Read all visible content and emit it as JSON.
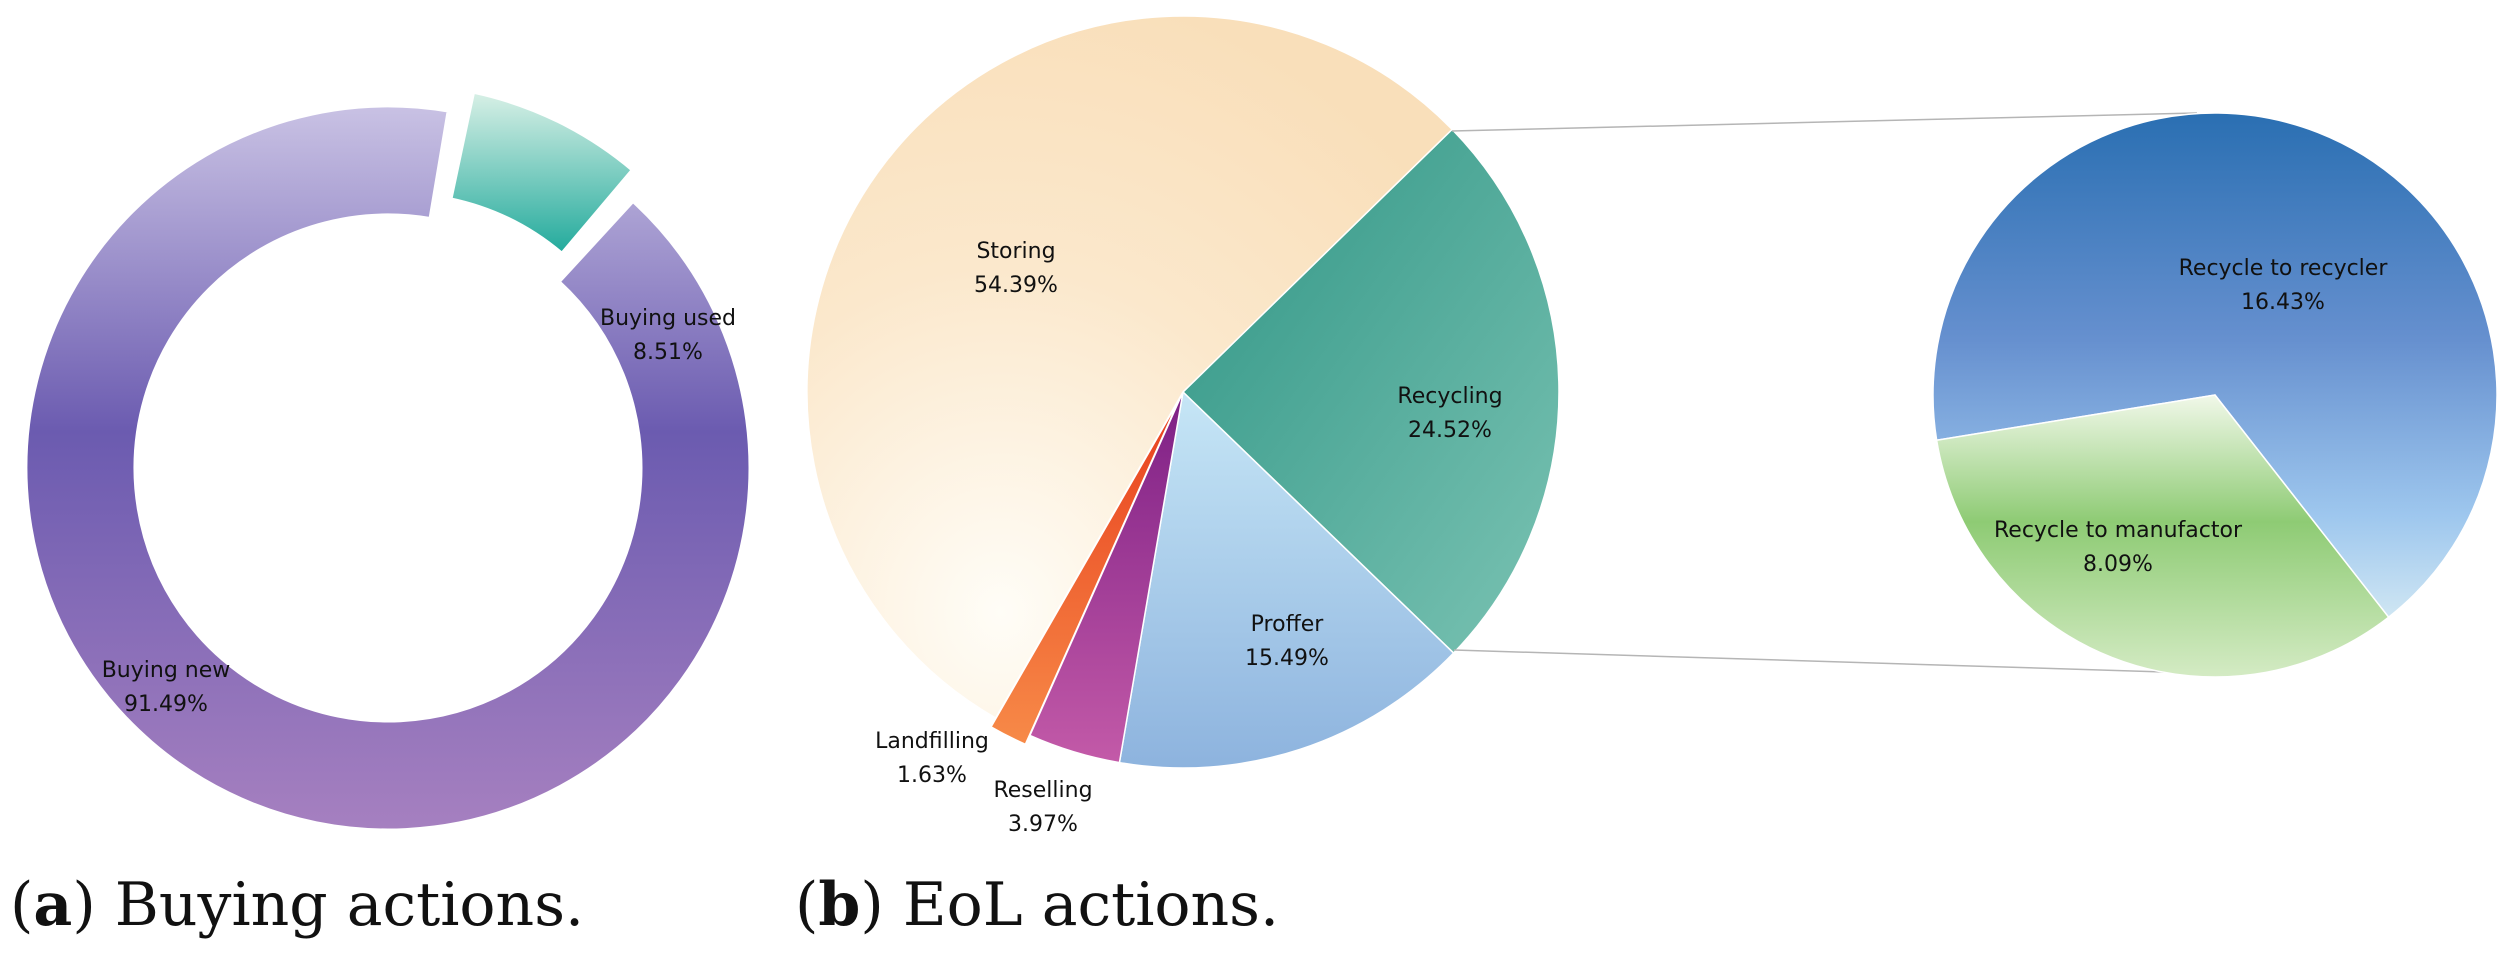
{
  "chart_data": [
    {
      "type": "pie",
      "subtype": "doughnut",
      "caption": {
        "letter": "a",
        "text": " Buying actions."
      },
      "slices": [
        {
          "label": "Buying new",
          "value": 91.49,
          "value_label": "91.49%",
          "color": "#7a63b3",
          "exploded": false
        },
        {
          "label": "Buying used",
          "value": 8.51,
          "value_label": "8.51%",
          "color": "#2bb3a4",
          "exploded": true
        }
      ]
    },
    {
      "type": "pie",
      "subtype": "pie-of-pie",
      "caption": {
        "letter": "b",
        "text": " EoL actions."
      },
      "slices": [
        {
          "label": "Storing",
          "value": 54.39,
          "value_label": "54.39%",
          "color": "#fbe3c1"
        },
        {
          "label": "Recycling",
          "value": 24.52,
          "value_label": "24.52%",
          "color": "#4aa597"
        },
        {
          "label": "Proffer",
          "value": 15.49,
          "value_label": "15.49%",
          "color": "#a9d2ef"
        },
        {
          "label": "Reselling",
          "value": 3.97,
          "value_label": "3.97%",
          "color": "#9b2f8e"
        },
        {
          "label": "Landfilling",
          "value": 1.63,
          "value_label": "1.63%",
          "color": "#f0582a"
        }
      ],
      "breakdown_of": "Recycling",
      "breakdown": [
        {
          "label": "Recycle to recycler",
          "value": 16.43,
          "value_label": "16.43%",
          "color": "#5b8fd0"
        },
        {
          "label": "Recycle to manufactor",
          "value": 8.09,
          "value_label": "8.09%",
          "color": "#9fd08a"
        }
      ]
    }
  ]
}
